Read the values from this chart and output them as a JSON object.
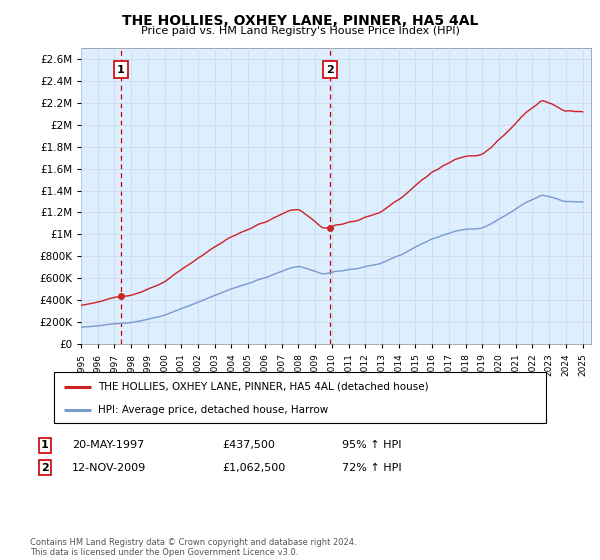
{
  "title": "THE HOLLIES, OXHEY LANE, PINNER, HA5 4AL",
  "subtitle": "Price paid vs. HM Land Registry's House Price Index (HPI)",
  "ylim": [
    0,
    2700000
  ],
  "yticks": [
    0,
    200000,
    400000,
    600000,
    800000,
    1000000,
    1200000,
    1400000,
    1600000,
    1800000,
    2000000,
    2200000,
    2400000,
    2600000
  ],
  "ytick_labels": [
    "£0",
    "£200K",
    "£400K",
    "£600K",
    "£800K",
    "£1M",
    "£1.2M",
    "£1.4M",
    "£1.6M",
    "£1.8M",
    "£2M",
    "£2.2M",
    "£2.4M",
    "£2.6M"
  ],
  "x_start_year": 1995,
  "x_end_year": 2025,
  "sale1_year": 1997.38,
  "sale1_price": 437500,
  "sale2_year": 2009.87,
  "sale2_price": 1062500,
  "vline_color": "#cc0000",
  "property_line_color": "#cc2222",
  "hpi_line_color": "#7799cc",
  "chart_bg_color": "#ddeeff",
  "legend_property": "THE HOLLIES, OXHEY LANE, PINNER, HA5 4AL (detached house)",
  "legend_hpi": "HPI: Average price, detached house, Harrow",
  "annotation1_date": "20-MAY-1997",
  "annotation1_price": "£437,500",
  "annotation1_hpi": "95% ↑ HPI",
  "annotation2_date": "12-NOV-2009",
  "annotation2_price": "£1,062,500",
  "annotation2_hpi": "72% ↑ HPI",
  "footer": "Contains HM Land Registry data © Crown copyright and database right 2024.\nThis data is licensed under the Open Government Licence v3.0.",
  "background_color": "#ffffff",
  "grid_color": "#c8d8e8"
}
